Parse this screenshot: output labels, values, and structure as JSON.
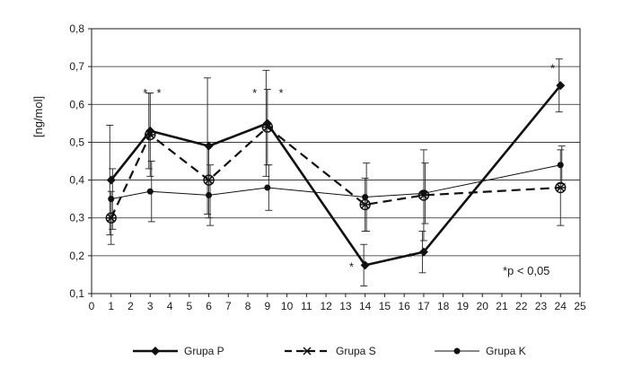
{
  "chart_data": {
    "type": "line",
    "ylabel": "[ng/mol]",
    "xlim": [
      0,
      25
    ],
    "ylim": [
      0.1,
      0.8
    ],
    "x_ticks": [
      "0",
      "1",
      "2",
      "3",
      "4",
      "5",
      "6",
      "7",
      "8",
      "9",
      "10",
      "11",
      "12",
      "13",
      "14",
      "15",
      "16",
      "17",
      "18",
      "19",
      "20",
      "21",
      "22",
      "23",
      "24",
      "25"
    ],
    "y_ticks": [
      "0,1",
      "0,2",
      "0,3",
      "0,4",
      "0,5",
      "0,6",
      "0,7",
      "0,8"
    ],
    "grid": "horizontal",
    "annotation": "*p < 0,05",
    "significance_marks": [
      {
        "x": 2.75,
        "y": 0.62,
        "text": "*"
      },
      {
        "x": 3.45,
        "y": 0.62,
        "text": "*"
      },
      {
        "x": 8.35,
        "y": 0.62,
        "text": "*"
      },
      {
        "x": 9.7,
        "y": 0.62,
        "text": "*"
      },
      {
        "x": 13.3,
        "y": 0.16,
        "text": "*"
      },
      {
        "x": 16.3,
        "y": 0.185,
        "text": "*"
      },
      {
        "x": 23.6,
        "y": 0.685,
        "text": "*"
      }
    ],
    "series": [
      {
        "name": "Grupa P",
        "x": [
          1,
          3,
          6,
          9,
          14,
          17,
          24
        ],
        "values": [
          0.4,
          0.53,
          0.49,
          0.55,
          0.175,
          0.21,
          0.65
        ],
        "errors": [
          0.145,
          0.1,
          0.18,
          0.14,
          0.055,
          0.055,
          0.07
        ],
        "color": "#111111",
        "line": "solid-thick",
        "marker": "diamond"
      },
      {
        "name": "Grupa S",
        "x": [
          1,
          3,
          6,
          9,
          14,
          17,
          24
        ],
        "values": [
          0.3,
          0.52,
          0.4,
          0.54,
          0.335,
          0.36,
          0.38
        ],
        "errors": [
          0.07,
          0.11,
          0.1,
          0.1,
          0.07,
          0.12,
          0.1
        ],
        "color": "#111111",
        "line": "dashed",
        "marker": "star"
      },
      {
        "name": "Grupa K",
        "x": [
          1,
          3,
          6,
          9,
          14,
          17,
          24
        ],
        "values": [
          0.35,
          0.37,
          0.36,
          0.38,
          0.355,
          0.365,
          0.44
        ],
        "errors": [
          0.08,
          0.08,
          0.08,
          0.06,
          0.09,
          0.08,
          0.05
        ],
        "color": "#111111",
        "line": "solid-thin",
        "marker": "circle"
      }
    ]
  }
}
